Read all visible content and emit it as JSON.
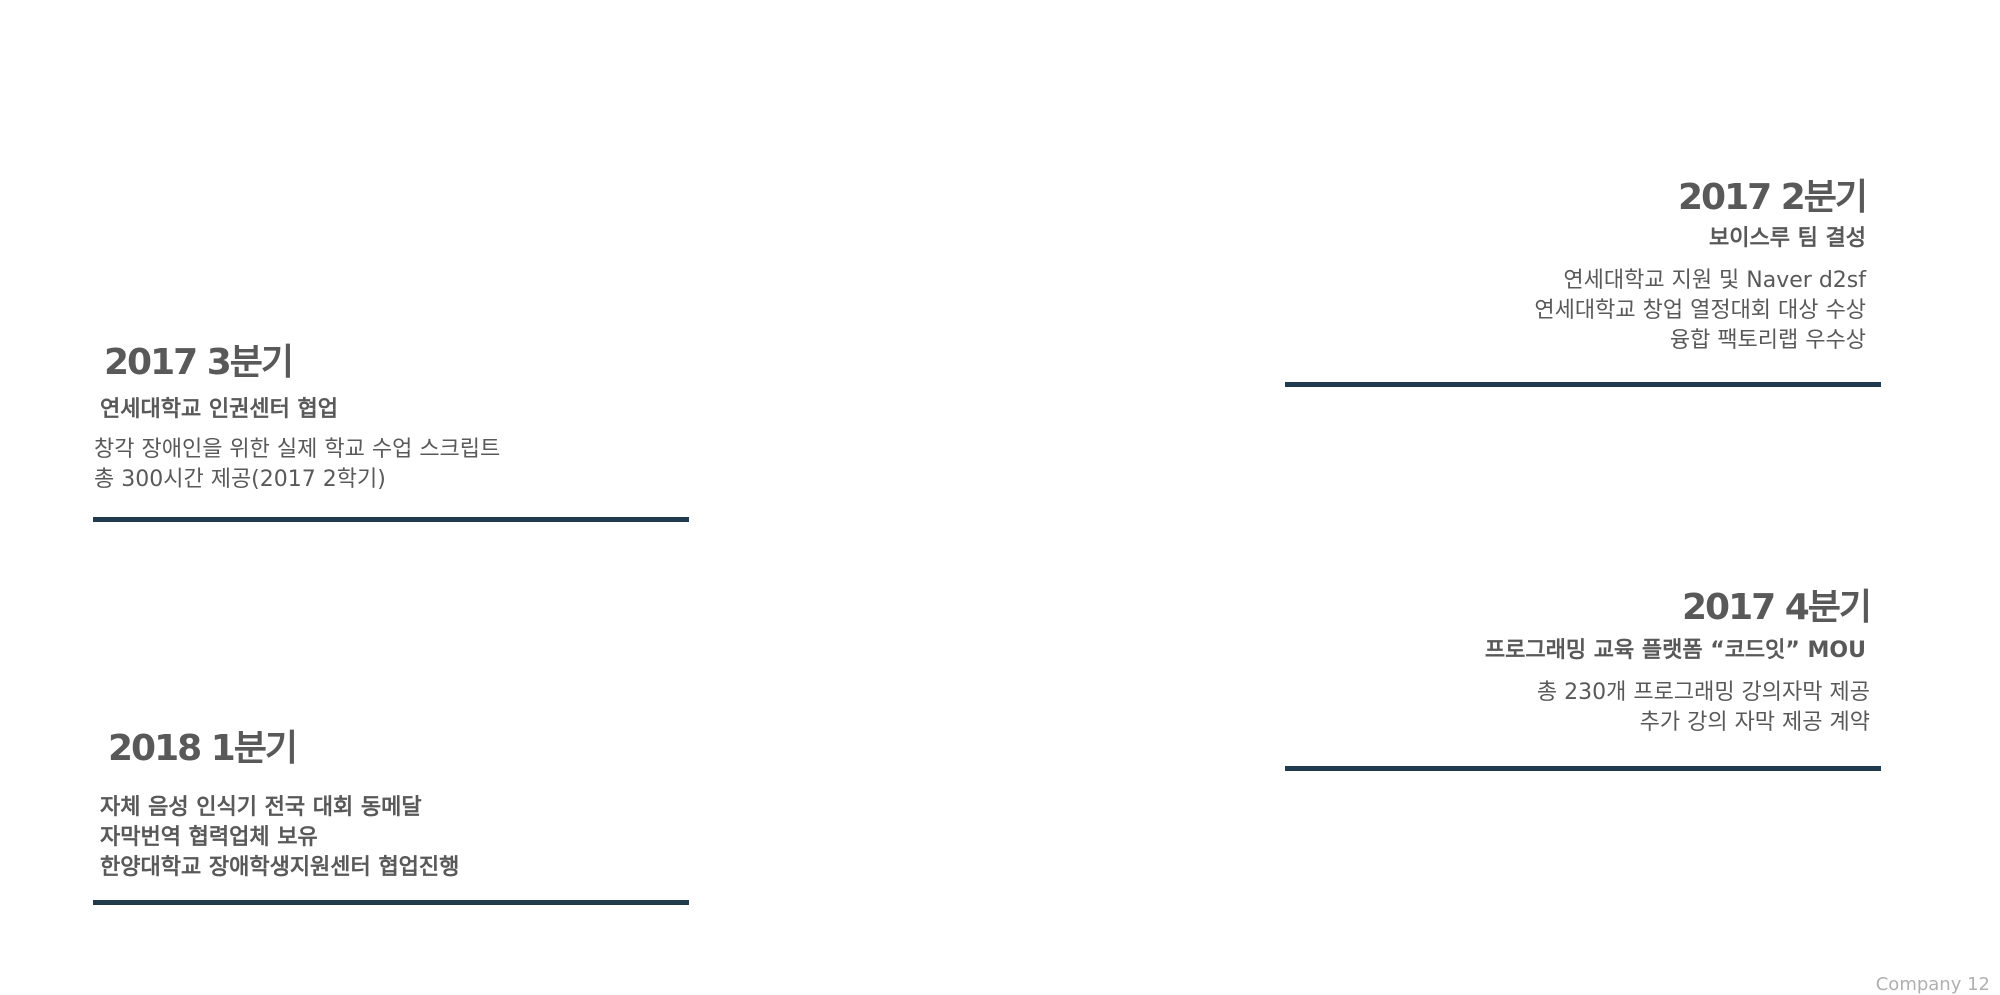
{
  "entries": [
    {
      "quarter": "2017 2분기",
      "headline": "보이스루 팀 결성",
      "lines": [
        "연세대학교 지원 및 Naver d2sf",
        "연세대학교 창업 열정대회  대상 수상",
        "융합 팩토리랩 우수상"
      ]
    },
    {
      "quarter": "2017 3분기",
      "headline": "연세대학교 인권센터 협업",
      "lines": [
        "창각 장애인을 위한 실제 학교 수업 스크립트",
        "총 300시간 제공(2017 2학기)"
      ]
    },
    {
      "quarter": "2017 4분기",
      "headline": "프로그래밍 교육 플랫폼 “코드잇” MOU",
      "lines": [
        "총 230개 프로그래밍 강의자막 제공",
        "추가 강의 자막 제공 계약"
      ]
    },
    {
      "quarter": "2018 1분기",
      "lines": [
        "자체 음성 인식기 전국 대회 동메달",
        "자막번역 협력업체 보유",
        "한양대학교 장애학생지원센터 협업진행"
      ]
    }
  ],
  "footer": "Company 12",
  "colors": {
    "text": "#595959",
    "rule": "#1f3b4d",
    "footer": "#b0b0b0"
  }
}
